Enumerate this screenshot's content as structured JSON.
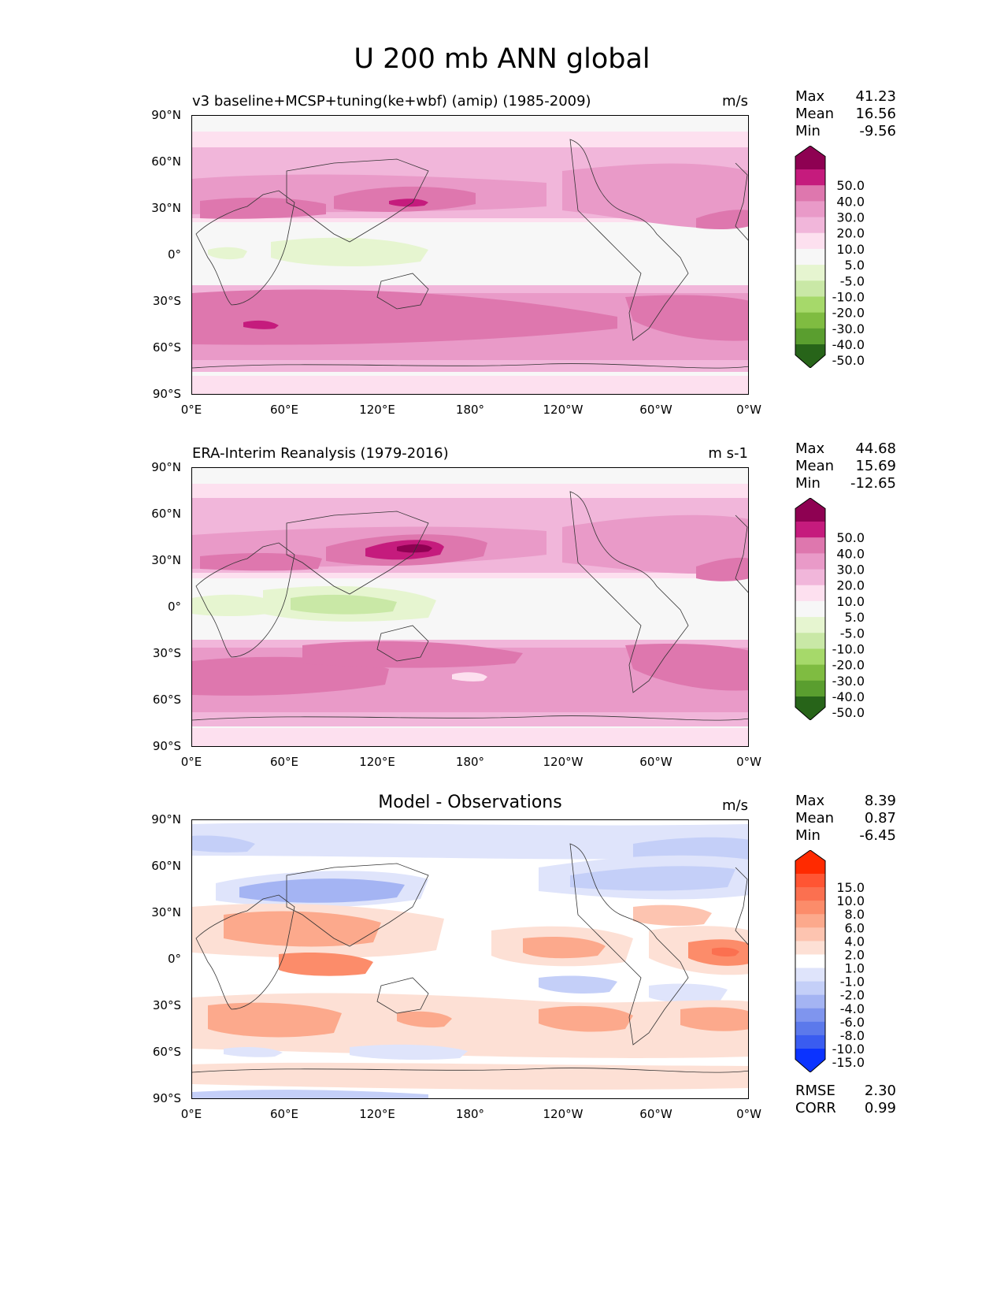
{
  "title": "U 200 mb ANN global",
  "lat_ticks": [
    "90°N",
    "60°N",
    "30°N",
    "0°",
    "30°S",
    "60°S",
    "90°S"
  ],
  "lon_ticks": [
    "0°E",
    "60°E",
    "120°E",
    "180°",
    "120°W",
    "60°W",
    "0°W"
  ],
  "panels": [
    {
      "title": "v3 baseline+MCSP+tuning(ke+wbf) (amip) (1985-2009)",
      "units": "m/s",
      "stats": {
        "max_label": "Max",
        "max": "41.23",
        "mean_label": "Mean",
        "mean": "16.56",
        "min_label": "Min",
        "min": "-9.56"
      },
      "colorbar_labels": [
        "50.0",
        "40.0",
        "30.0",
        "20.0",
        "10.0",
        "5.0",
        "-5.0",
        "-10.0",
        "-20.0",
        "-30.0",
        "-40.0",
        "-50.0"
      ],
      "colorbar_colors": [
        "#8e0152",
        "#c51b7d",
        "#de77ae",
        "#e99ac8",
        "#f1b6da",
        "#fde0ef",
        "#f7f7f7",
        "#e6f5d0",
        "#c9e8a6",
        "#a6d96a",
        "#7fbc41",
        "#5a9e2f",
        "#276419"
      ]
    },
    {
      "title": "ERA-Interim Reanalysis (1979-2016)",
      "units": "m s-1",
      "stats": {
        "max_label": "Max",
        "max": "44.68",
        "mean_label": "Mean",
        "mean": "15.69",
        "min_label": "Min",
        "min": "-12.65"
      },
      "colorbar_labels": [
        "50.0",
        "40.0",
        "30.0",
        "20.0",
        "10.0",
        "5.0",
        "-5.0",
        "-10.0",
        "-20.0",
        "-30.0",
        "-40.0",
        "-50.0"
      ],
      "colorbar_colors": [
        "#8e0152",
        "#c51b7d",
        "#de77ae",
        "#e99ac8",
        "#f1b6da",
        "#fde0ef",
        "#f7f7f7",
        "#e6f5d0",
        "#c9e8a6",
        "#a6d96a",
        "#7fbc41",
        "#5a9e2f",
        "#276419"
      ]
    },
    {
      "title": "Model - Observations",
      "units": "m/s",
      "stats": {
        "max_label": "Max",
        "max": "8.39",
        "mean_label": "Mean",
        "mean": "0.87",
        "min_label": "Min",
        "min": "-6.45"
      },
      "extra_stats": {
        "rmse_label": "RMSE",
        "rmse": "2.30",
        "corr_label": "CORR",
        "corr": "0.99"
      },
      "colorbar_labels": [
        "15.0",
        "10.0",
        "8.0",
        "6.0",
        "4.0",
        "2.0",
        "1.0",
        "-1.0",
        "-2.0",
        "-4.0",
        "-6.0",
        "-8.0",
        "-10.0",
        "-15.0"
      ],
      "colorbar_colors": [
        "#ff2a00",
        "#ff5533",
        "#fb7050",
        "#fc8c6a",
        "#fca98c",
        "#fdc4b0",
        "#fde0d5",
        "#ffffff",
        "#dfe4fb",
        "#c4cff8",
        "#a4b4f3",
        "#7f95ee",
        "#5c79eb",
        "#3a5cf0",
        "#0b33ff"
      ]
    }
  ]
}
